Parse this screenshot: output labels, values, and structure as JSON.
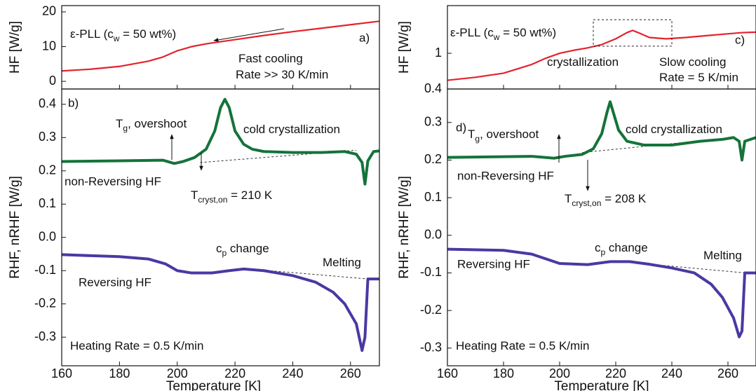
{
  "chart_data": [
    {
      "type": "line",
      "panel_label": "a)",
      "ylabel": "HF [W/g]",
      "xlim": [
        160,
        270
      ],
      "ylim": [
        -2.2,
        21.8
      ],
      "yticks": [
        0,
        10,
        20
      ],
      "series": [
        {
          "color": "#e3232c",
          "x": [
            160,
            170,
            180,
            190,
            195,
            200,
            205,
            210,
            220,
            230,
            240,
            250,
            260,
            270
          ],
          "values": [
            3,
            3.5,
            4.3,
            5.8,
            7,
            8.8,
            10,
            10.8,
            12,
            13.2,
            14.3,
            15.3,
            16.3,
            17.3
          ]
        }
      ],
      "annotations": [
        {
          "text": [
            "ε-PLL (c",
            "w",
            " = 50 wt%)"
          ]
        },
        {
          "text": [
            "Fast cooling"
          ]
        },
        {
          "text": [
            "Rate >> 30 K/min"
          ]
        }
      ]
    },
    {
      "type": "line",
      "panel_label": "b)",
      "ylabel": "RHF, nRHF [W/g]",
      "xlabel": "Temperature [K]",
      "xlim": [
        160,
        270
      ],
      "xticks": [
        160,
        180,
        200,
        220,
        240,
        260
      ],
      "ylim": [
        -0.386,
        0.446
      ],
      "yticks": [
        -0.3,
        -0.2,
        -0.1,
        {
          "value": 0,
          "label": "0.0"
        },
        0.1,
        0.2,
        0.3,
        0.4
      ],
      "series": [
        {
          "name": "non-Reversing HF",
          "color": "#14733a",
          "x": [
            160,
            180,
            195,
            199,
            202,
            206,
            210,
            213,
            215,
            216.5,
            218,
            220,
            223,
            226,
            230,
            240,
            250,
            258,
            262,
            264,
            265,
            266,
            268,
            270
          ],
          "values": [
            0.228,
            0.23,
            0.232,
            0.222,
            0.228,
            0.24,
            0.265,
            0.32,
            0.39,
            0.415,
            0.39,
            0.32,
            0.28,
            0.265,
            0.258,
            0.255,
            0.255,
            0.258,
            0.25,
            0.225,
            0.16,
            0.23,
            0.258,
            0.26
          ]
        },
        {
          "name": "Reversing HF",
          "color": "#4b38a3",
          "x": [
            160,
            180,
            190,
            196,
            200,
            205,
            212,
            218,
            223,
            230,
            240,
            248,
            254,
            258,
            262,
            264,
            265,
            266,
            270
          ],
          "values": [
            -0.052,
            -0.058,
            -0.065,
            -0.08,
            -0.1,
            -0.107,
            -0.107,
            -0.1,
            -0.095,
            -0.1,
            -0.115,
            -0.135,
            -0.165,
            -0.2,
            -0.26,
            -0.34,
            -0.3,
            -0.125,
            -0.125
          ]
        }
      ],
      "reference_lines": [
        {
          "x": [
            208,
            262
          ],
          "values": [
            0.225,
            0.262
          ]
        },
        {
          "x": [
            225,
            266
          ],
          "values": [
            -0.095,
            -0.125
          ]
        }
      ],
      "annotations": [
        {
          "text": [
            "T",
            "g",
            ", overshoot"
          ]
        },
        {
          "text": [
            "cold crystallization"
          ]
        },
        {
          "text": [
            "T",
            "cryst,on",
            " = 210 K"
          ]
        },
        {
          "text": [
            "c",
            "p",
            " change"
          ]
        },
        {
          "text": [
            "Melting"
          ]
        },
        {
          "text": [
            "Heating Rate = 0.5 K/min"
          ]
        }
      ]
    },
    {
      "type": "line",
      "panel_label": "c)",
      "ylabel": "HF [W/g]",
      "log_y": true,
      "xlim": [
        160,
        270
      ],
      "ylim": [
        0.4,
        3.4
      ],
      "yticks": [
        0.4,
        1
      ],
      "series": [
        {
          "color": "#e3232c",
          "x": [
            160,
            170,
            180,
            190,
            195,
            200,
            205,
            210,
            215,
            220,
            224,
            226,
            228,
            232,
            238,
            245,
            255,
            265,
            270
          ],
          "values": [
            0.5,
            0.54,
            0.6,
            0.75,
            0.88,
            1.0,
            1.08,
            1.15,
            1.25,
            1.45,
            1.7,
            1.8,
            1.7,
            1.5,
            1.45,
            1.5,
            1.6,
            1.7,
            1.72
          ]
        }
      ],
      "highlight_box": {
        "x": [
          212,
          240
        ],
        "y": [
          1.2,
          2.37
        ]
      },
      "annotations": [
        {
          "text": [
            "ε-PLL (c",
            "w",
            " = 50 wt%)"
          ]
        },
        {
          "text": [
            "crystallization"
          ]
        },
        {
          "text": [
            "Slow cooling"
          ]
        },
        {
          "text": [
            "Rate = 5 K/min"
          ]
        }
      ]
    },
    {
      "type": "line",
      "panel_label": "d)",
      "ylabel": "RHF, nRHF [W/g]",
      "xlabel": "Temperature [K]",
      "xlim": [
        160,
        270
      ],
      "xticks": [
        160,
        180,
        200,
        220,
        240,
        260
      ],
      "ylim": [
        -0.347,
        0.389
      ],
      "yticks": [
        -0.3,
        -0.2,
        -0.1,
        {
          "value": 0,
          "label": "0.0"
        },
        0.1,
        0.2,
        0.3
      ],
      "series": [
        {
          "name": "non-Reversing HF",
          "color": "#14733a",
          "x": [
            160,
            190,
            198,
            202,
            208,
            212,
            215,
            217,
            218,
            219,
            221,
            224,
            230,
            240,
            250,
            258,
            262,
            264,
            265,
            266,
            270
          ],
          "values": [
            0.207,
            0.21,
            0.205,
            0.21,
            0.215,
            0.23,
            0.27,
            0.33,
            0.355,
            0.33,
            0.28,
            0.25,
            0.24,
            0.24,
            0.25,
            0.255,
            0.26,
            0.25,
            0.2,
            0.25,
            0.26
          ]
        },
        {
          "name": "Reversing HF",
          "color": "#4b38a3",
          "x": [
            160,
            180,
            190,
            196,
            200,
            210,
            218,
            225,
            232,
            240,
            248,
            254,
            258,
            262,
            264,
            265,
            266,
            270
          ],
          "values": [
            -0.037,
            -0.04,
            -0.05,
            -0.065,
            -0.075,
            -0.078,
            -0.07,
            -0.07,
            -0.077,
            -0.087,
            -0.1,
            -0.13,
            -0.165,
            -0.22,
            -0.27,
            -0.255,
            -0.1,
            -0.1
          ]
        }
      ],
      "reference_lines": [
        {
          "x": [
            208,
            262
          ],
          "values": [
            0.22,
            0.26
          ]
        },
        {
          "x": [
            225,
            266
          ],
          "values": [
            -0.072,
            -0.1
          ]
        }
      ],
      "annotations": [
        {
          "text": [
            "T",
            "g",
            ", overshoot"
          ]
        },
        {
          "text": [
            "cold crystallization"
          ]
        },
        {
          "text": [
            "T",
            "cryst,on",
            " = 208 K"
          ]
        },
        {
          "text": [
            "c",
            "p",
            " change"
          ]
        },
        {
          "text": [
            "Melting"
          ]
        },
        {
          "text": [
            "Heating Rate = 0.5 K/min"
          ]
        }
      ]
    }
  ]
}
